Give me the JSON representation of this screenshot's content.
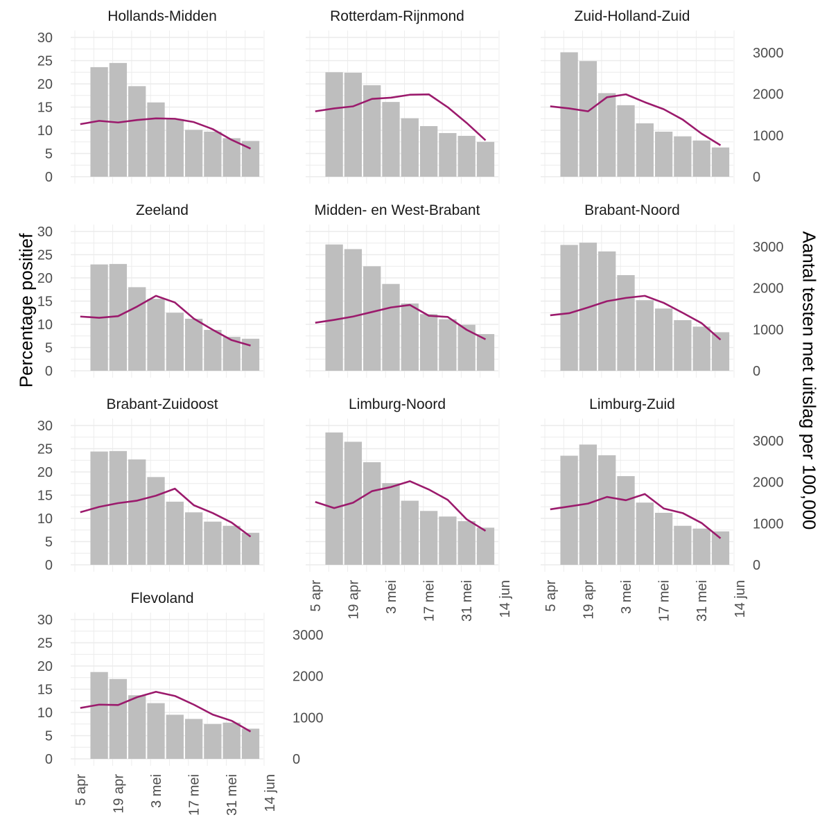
{
  "axes": {
    "ylabel_left": "Percentage positief",
    "ylabel_right": "Aantal testen met uitslag per 100,000",
    "y_ticks": [
      0,
      5,
      10,
      15,
      20,
      25,
      30
    ],
    "y2_ticks": [
      0,
      1000,
      2000,
      3000
    ],
    "x_ticks": [
      "5 apr",
      "19 apr",
      "3 mei",
      "17 mei",
      "31 mei",
      "14 jun"
    ]
  },
  "colors": {
    "bars": "#bebebe",
    "line": "#9b1a6c",
    "grid": "#ebebeb",
    "text": "#4d4d4d"
  },
  "chart_data": {
    "type": "bar",
    "facet_layout": "3 columns",
    "bar_series": "Percentage positief (left axis, %)",
    "line_series": "Aantal testen met uitslag per 100,000 (right axis)",
    "ylim": [
      0,
      30
    ],
    "y2lim": [
      0,
      3700
    ],
    "xlim": [
      "2020-04-03",
      "2020-06-16"
    ],
    "bar_weeks": [
      "2020-04-12",
      "2020-04-19",
      "2020-04-26",
      "2020-05-03",
      "2020-05-10",
      "2020-05-17",
      "2020-05-24",
      "2020-05-31",
      "2020-06-07"
    ],
    "line_dates": [
      "2020-04-05",
      "2020-04-12",
      "2020-04-19",
      "2020-04-26",
      "2020-05-03",
      "2020-05-10",
      "2020-05-17",
      "2020-05-24",
      "2020-05-31",
      "2020-06-07"
    ],
    "panels": [
      {
        "name": "Hollands-Midden",
        "bars": [
          23.6,
          24.5,
          19.5,
          16,
          12.4,
          10.1,
          9.7,
          8.3,
          7.7
        ],
        "line": [
          1270,
          1350,
          1310,
          1370,
          1410,
          1400,
          1320,
          1150,
          890,
          680
        ]
      },
      {
        "name": "Rotterdam-Rijnmond",
        "bars": [
          22.5,
          22.4,
          19.7,
          16.1,
          12.6,
          10.9,
          9.4,
          8.8,
          7.5
        ],
        "line": [
          1580,
          1650,
          1700,
          1880,
          1910,
          1980,
          1990,
          1680,
          1300,
          880
        ]
      },
      {
        "name": "Zuid-Holland-Zuid",
        "bars": [
          26.8,
          24.9,
          18,
          15.4,
          11.5,
          9.7,
          8.7,
          7.8,
          6.3
        ],
        "line": [
          1700,
          1650,
          1580,
          1920,
          1990,
          1800,
          1630,
          1380,
          1040,
          760
        ]
      },
      {
        "name": "Zeeland",
        "bars": [
          22.9,
          23,
          18,
          15.5,
          12.5,
          11.2,
          8.8,
          7.3,
          6.9
        ],
        "line": [
          1310,
          1280,
          1320,
          1550,
          1810,
          1650,
          1260,
          990,
          740,
          610
        ]
      },
      {
        "name": "Midden- en West-Brabant",
        "bars": [
          27.2,
          26.2,
          22.5,
          18.7,
          14.5,
          12.2,
          11.1,
          9.9,
          7.9
        ],
        "line": [
          1160,
          1230,
          1310,
          1420,
          1530,
          1590,
          1330,
          1300,
          990,
          760
        ]
      },
      {
        "name": "Brabant-Noord",
        "bars": [
          27.1,
          27.6,
          25.7,
          20.6,
          15.2,
          13.4,
          10.9,
          9.5,
          8.3
        ],
        "line": [
          1340,
          1390,
          1530,
          1680,
          1760,
          1810,
          1640,
          1400,
          1150,
          750
        ]
      },
      {
        "name": "Brabant-Zuidoost",
        "bars": [
          24.4,
          24.5,
          22.7,
          18.9,
          13.6,
          11.3,
          9.3,
          8.4,
          6.9
        ],
        "line": [
          1270,
          1400,
          1490,
          1550,
          1670,
          1840,
          1440,
          1250,
          1020,
          680
        ]
      },
      {
        "name": "Limburg-Noord",
        "bars": [
          28.5,
          26.5,
          22.1,
          17.6,
          13.8,
          11.6,
          10.4,
          9.4,
          8
        ],
        "line": [
          1520,
          1370,
          1500,
          1780,
          1880,
          2020,
          1820,
          1570,
          1100,
          820
        ]
      },
      {
        "name": "Limburg-Zuid",
        "bars": [
          23.5,
          25.9,
          23.6,
          19.1,
          13.4,
          11.2,
          8.4,
          7.8,
          7.2
        ],
        "line": [
          1340,
          1410,
          1480,
          1640,
          1560,
          1710,
          1360,
          1250,
          1010,
          640
        ]
      },
      {
        "name": "Flevoland",
        "bars": [
          18.7,
          17.2,
          13.7,
          12,
          9.5,
          8.6,
          7.5,
          7.8,
          6.5
        ],
        "line": [
          1230,
          1310,
          1300,
          1490,
          1620,
          1520,
          1310,
          1070,
          920,
          660
        ]
      }
    ]
  }
}
